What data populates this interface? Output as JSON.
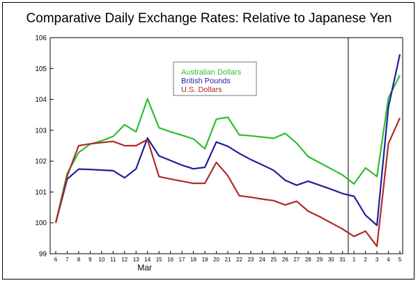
{
  "chart_data": {
    "type": "line",
    "title": "Comparative Daily Exchange Rates: Relative to Japanese Yen",
    "xlabel": "Mar",
    "ylabel": "",
    "ylim": [
      99,
      106
    ],
    "yticks": [
      "99",
      "100",
      "101",
      "102",
      "103",
      "104",
      "105",
      "106"
    ],
    "x": [
      "6",
      "7",
      "8",
      "9",
      "10",
      "11",
      "12",
      "13",
      "14",
      "15",
      "16",
      "17",
      "18",
      "19",
      "20",
      "21",
      "22",
      "23",
      "24",
      "25",
      "26",
      "27",
      "28",
      "29",
      "30",
      "31",
      "1",
      "2",
      "3",
      "4",
      "5"
    ],
    "grid": false,
    "legend_position": "top-center",
    "separator_after_category": "31",
    "series": [
      {
        "name": "Australian Dollars",
        "color": "#2ebd2e",
        "values": [
          100.0,
          101.6,
          102.28,
          102.55,
          102.66,
          102.8,
          103.18,
          102.95,
          104.02,
          103.08,
          102.95,
          102.84,
          102.72,
          102.4,
          103.36,
          103.42,
          102.85,
          102.82,
          102.78,
          102.74,
          102.9,
          102.58,
          102.15,
          101.95,
          101.75,
          101.55,
          101.26,
          101.78,
          101.5,
          104.05,
          104.78
        ]
      },
      {
        "name": "British Pounds",
        "color": "#1f1f9c",
        "values": [
          100.0,
          101.42,
          101.74,
          101.73,
          101.71,
          101.69,
          101.46,
          101.75,
          102.75,
          102.17,
          102.02,
          101.87,
          101.75,
          101.8,
          102.62,
          102.48,
          102.25,
          102.05,
          101.88,
          101.7,
          101.38,
          101.22,
          101.35,
          101.22,
          101.09,
          100.95,
          100.86,
          100.25,
          99.92,
          103.75,
          105.46
        ]
      },
      {
        "name": "U.S. Dollars",
        "color": "#b02a2a",
        "values": [
          100.0,
          101.52,
          102.5,
          102.56,
          102.6,
          102.64,
          102.5,
          102.5,
          102.7,
          101.5,
          101.42,
          101.35,
          101.28,
          101.28,
          101.96,
          101.53,
          100.88,
          100.83,
          100.77,
          100.72,
          100.58,
          100.7,
          100.38,
          100.2,
          100.0,
          99.8,
          99.56,
          99.73,
          99.24,
          102.57,
          103.4
        ]
      }
    ]
  }
}
